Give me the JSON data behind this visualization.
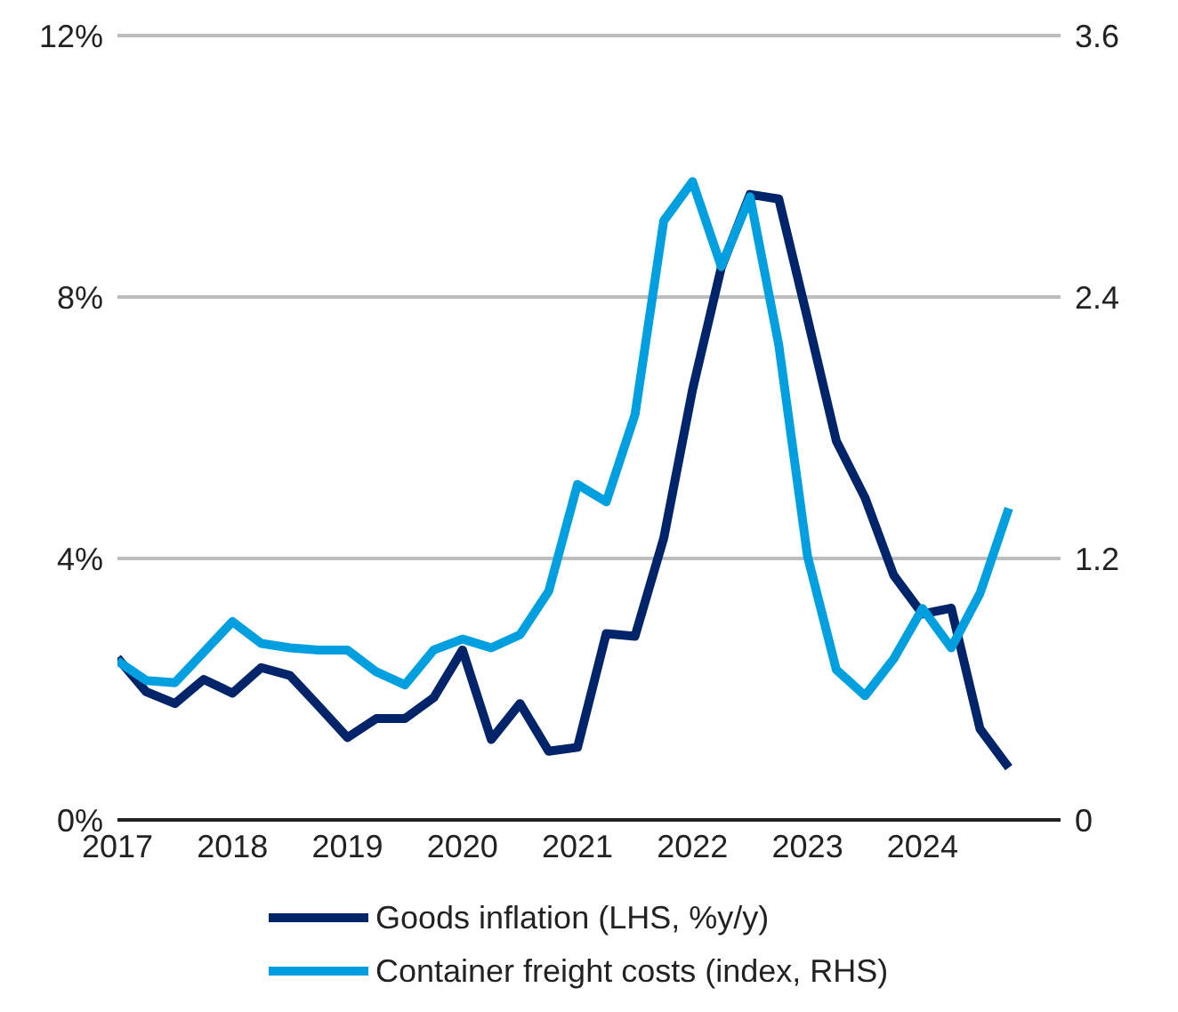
{
  "chart_data": {
    "type": "line",
    "x": [
      2017,
      2017.25,
      2017.5,
      2017.75,
      2018,
      2018.25,
      2018.5,
      2018.75,
      2019,
      2019.25,
      2019.5,
      2019.75,
      2020,
      2020.25,
      2020.5,
      2020.75,
      2021,
      2021.25,
      2021.5,
      2021.75,
      2022,
      2022.25,
      2022.5,
      2022.75,
      2023,
      2023.25,
      2023.5,
      2023.75,
      2024,
      2024.25,
      2024.5,
      2024.75
    ],
    "series": [
      {
        "name": "Goods inflation (LHS, %y/y)",
        "color": "#002469",
        "values": [
          2.48,
          1.96,
          1.78,
          2.15,
          1.94,
          2.33,
          2.21,
          1.74,
          1.26,
          1.55,
          1.55,
          1.87,
          2.6,
          1.23,
          1.78,
          1.05,
          1.11,
          2.85,
          2.81,
          4.31,
          6.58,
          8.45,
          9.57,
          9.5,
          7.67,
          5.8,
          4.93,
          3.74,
          3.15,
          3.24,
          1.39,
          0.8
        ]
      },
      {
        "name": "Container freight costs (index, RHS)",
        "color": "#00a0e0",
        "axis": "y2",
        "values": [
          0.73,
          0.64,
          0.63,
          0.77,
          0.91,
          0.81,
          0.79,
          0.78,
          0.78,
          0.68,
          0.62,
          0.78,
          0.83,
          0.79,
          0.85,
          1.05,
          1.54,
          1.46,
          1.86,
          2.75,
          2.93,
          2.54,
          2.86,
          2.18,
          1.21,
          0.69,
          0.57,
          0.74,
          0.97,
          0.79,
          1.04,
          1.43
        ]
      }
    ],
    "xlim": [
      2017,
      2025.2
    ],
    "xticks": [
      2017,
      2018,
      2019,
      2020,
      2021,
      2022,
      2023,
      2024
    ],
    "ylim": [
      0,
      12
    ],
    "yticks": [
      {
        "value": 0,
        "label": "0%"
      },
      {
        "value": 4,
        "label": "4%"
      },
      {
        "value": 8,
        "label": "8%"
      },
      {
        "value": 12,
        "label": "12%"
      }
    ],
    "y2lim": [
      0,
      3.6
    ],
    "y2ticks": [
      0,
      1.2,
      2.4,
      3.6
    ],
    "grid": "y",
    "legend": "bottom",
    "marker": "none",
    "line_style": "solid"
  }
}
